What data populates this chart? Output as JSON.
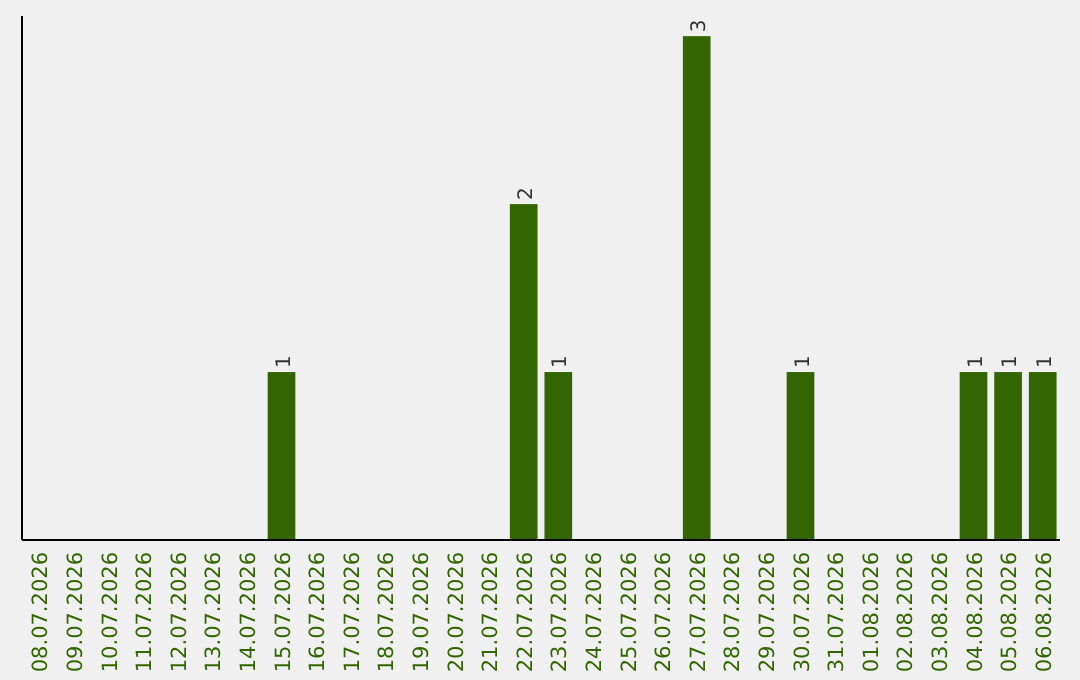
{
  "chart_data": {
    "type": "bar",
    "categories": [
      "08.07.2026",
      "09.07.2026",
      "10.07.2026",
      "11.07.2026",
      "12.07.2026",
      "13.07.2026",
      "14.07.2026",
      "15.07.2026",
      "16.07.2026",
      "17.07.2026",
      "18.07.2026",
      "19.07.2026",
      "20.07.2026",
      "21.07.2026",
      "22.07.2026",
      "23.07.2026",
      "24.07.2026",
      "25.07.2026",
      "26.07.2026",
      "27.07.2026",
      "28.07.2026",
      "29.07.2026",
      "30.07.2026",
      "31.07.2026",
      "01.08.2026",
      "02.08.2026",
      "03.08.2026",
      "04.08.2026",
      "05.08.2026",
      "06.08.2026"
    ],
    "values": [
      0,
      0,
      0,
      0,
      0,
      0,
      0,
      1,
      0,
      0,
      0,
      0,
      0,
      0,
      2,
      1,
      0,
      0,
      0,
      3,
      0,
      0,
      1,
      0,
      0,
      0,
      0,
      1,
      1,
      1
    ],
    "value_labels": [
      null,
      null,
      null,
      null,
      null,
      null,
      null,
      "1",
      null,
      null,
      null,
      null,
      null,
      null,
      "2",
      "1",
      null,
      null,
      null,
      "3",
      null,
      null,
      "1",
      null,
      null,
      null,
      null,
      "1",
      "1",
      "1"
    ],
    "color": "#336600",
    "tick_labels": "x"
  }
}
